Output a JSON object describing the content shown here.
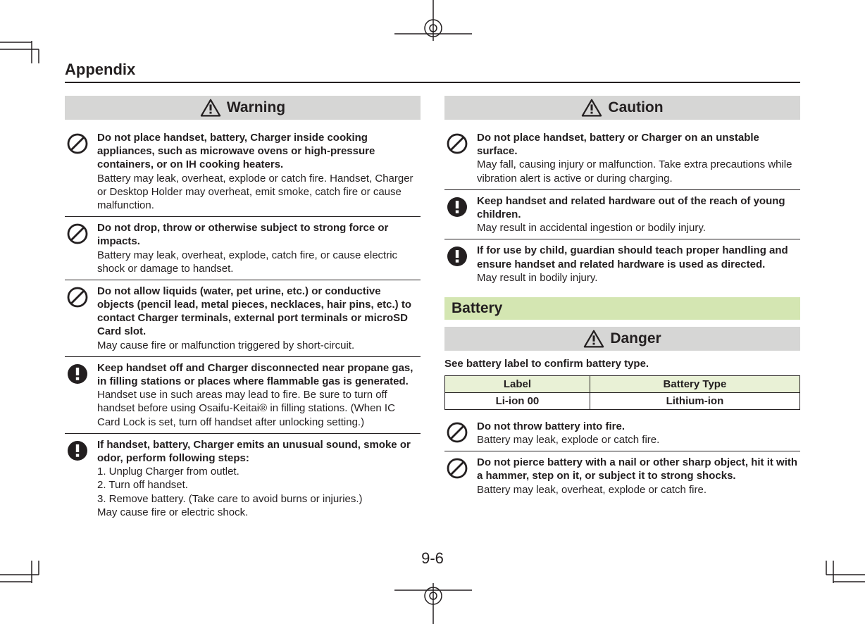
{
  "header": {
    "appendix": "Appendix"
  },
  "pageNumber": "9-6",
  "warning": {
    "label": "Warning",
    "items": [
      {
        "icon": "prohibit",
        "title": "Do not place handset, battery, Charger inside cooking appliances, such as microwave ovens or high-pressure containers, or on IH cooking heaters.",
        "desc": "Battery may leak, overheat, explode or catch fire. Handset, Charger or Desktop Holder may overheat, emit smoke, catch fire or cause malfunction."
      },
      {
        "icon": "prohibit",
        "title": "Do not drop, throw or otherwise subject to strong force or impacts.",
        "desc": "Battery may leak, overheat, explode, catch fire, or cause electric shock or damage to handset."
      },
      {
        "icon": "prohibit",
        "title": "Do not allow liquids (water, pet urine, etc.) or conductive objects (pencil lead, metal pieces, necklaces, hair pins, etc.) to contact Charger terminals, external port terminals or microSD Card slot.",
        "desc": "May cause fire or malfunction triggered by short-circuit."
      },
      {
        "icon": "mandatory",
        "title": "Keep handset off and Charger disconnected near propane gas, in filling stations or places where flammable gas is generated.",
        "desc": "Handset use in such areas may lead to fire. Be sure to turn off handset before using Osaifu-Keitai® in filling stations. (When IC Card Lock is set, turn off handset after unlocking setting.)"
      },
      {
        "icon": "mandatory",
        "title": "If handset, battery, Charger emits an unusual sound, smoke or odor, perform following steps:",
        "desc": "1. Unplug Charger from outlet.\n2. Turn off handset.\n3. Remove battery. (Take care to avoid burns or injuries.)\nMay cause fire or electric shock."
      }
    ]
  },
  "caution": {
    "label": "Caution",
    "items": [
      {
        "icon": "prohibit",
        "title": "Do not place handset, battery or Charger on an unstable surface.",
        "desc": "May fall, causing injury or malfunction. Take extra precautions while vibration alert is active or during charging."
      },
      {
        "icon": "mandatory",
        "title": "Keep handset and related hardware out of the reach of young children.",
        "desc": "May result in accidental ingestion or bodily injury."
      },
      {
        "icon": "mandatory",
        "title": "If for use by child, guardian should teach proper handling and ensure handset and related hardware is used as directed.",
        "desc": "May result in bodily injury."
      }
    ]
  },
  "battery": {
    "heading": "Battery",
    "dangerLabel": "Danger",
    "note": "See battery label to confirm battery type.",
    "table": {
      "headers": [
        "Label",
        "Battery Type"
      ],
      "row": [
        "Li-ion 00",
        "Lithium-ion"
      ]
    },
    "items": [
      {
        "icon": "prohibit",
        "title": "Do not throw battery into fire.",
        "desc": "Battery may leak, explode or catch fire."
      },
      {
        "icon": "prohibit",
        "title": "Do not pierce battery with a nail or other sharp object, hit it with a hammer, step on it, or subject it to strong shocks.",
        "desc": "Battery may leak, overheat, explode or catch fire."
      }
    ]
  }
}
